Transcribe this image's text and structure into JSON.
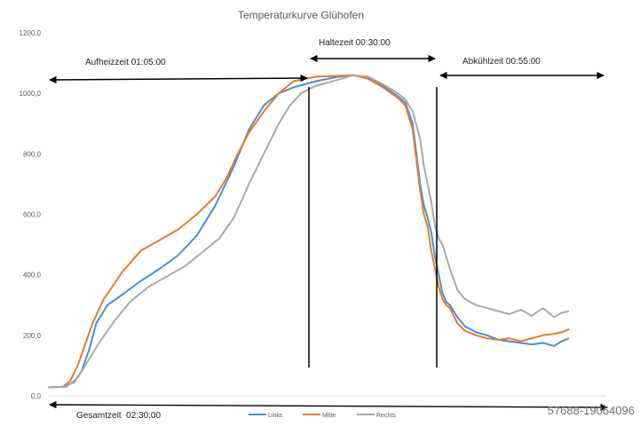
{
  "chart_data": {
    "type": "line",
    "title": "Temperaturkurve Glühofen",
    "xlabel": "",
    "ylabel": "",
    "ylim": [
      0,
      1200
    ],
    "y_ticks": [
      "0,0",
      "200,0",
      "400,0",
      "600,0",
      "800,0",
      "1000,0",
      "1200,0"
    ],
    "grid": false,
    "legend_position": "bottom",
    "x_range_minutes": [
      0,
      150
    ],
    "series": [
      {
        "name": "Links",
        "color": "#4a8fd0",
        "points": [
          [
            0,
            28
          ],
          [
            4,
            30
          ],
          [
            7,
            45
          ],
          [
            9,
            80
          ],
          [
            11,
            150
          ],
          [
            13,
            240
          ],
          [
            16,
            300
          ],
          [
            20,
            335
          ],
          [
            25,
            380
          ],
          [
            30,
            420
          ],
          [
            35,
            465
          ],
          [
            40,
            530
          ],
          [
            45,
            630
          ],
          [
            50,
            760
          ],
          [
            54,
            880
          ],
          [
            58,
            960
          ],
          [
            62,
            1000
          ],
          [
            66,
            1020
          ],
          [
            72,
            1040
          ],
          [
            78,
            1055
          ],
          [
            82,
            1060
          ],
          [
            86,
            1050
          ],
          [
            90,
            1025
          ],
          [
            94,
            990
          ],
          [
            96,
            970
          ],
          [
            98,
            900
          ],
          [
            99,
            800
          ],
          [
            100,
            700
          ],
          [
            101,
            630
          ],
          [
            102,
            590
          ],
          [
            103,
            540
          ],
          [
            104,
            460
          ],
          [
            105,
            400
          ],
          [
            106,
            340
          ],
          [
            107,
            310
          ],
          [
            108,
            300
          ],
          [
            110,
            260
          ],
          [
            112,
            230
          ],
          [
            115,
            210
          ],
          [
            118,
            200
          ],
          [
            121,
            185
          ],
          [
            124,
            180
          ],
          [
            127,
            175
          ],
          [
            130,
            170
          ],
          [
            133,
            175
          ],
          [
            136,
            165
          ],
          [
            138,
            180
          ],
          [
            140,
            190
          ]
        ]
      },
      {
        "name": "Mitte",
        "color": "#e57b30",
        "points": [
          [
            0,
            28
          ],
          [
            4,
            30
          ],
          [
            6,
            50
          ],
          [
            8,
            100
          ],
          [
            10,
            170
          ],
          [
            12,
            240
          ],
          [
            15,
            320
          ],
          [
            20,
            410
          ],
          [
            25,
            480
          ],
          [
            30,
            515
          ],
          [
            35,
            550
          ],
          [
            40,
            600
          ],
          [
            45,
            660
          ],
          [
            48,
            720
          ],
          [
            51,
            800
          ],
          [
            54,
            870
          ],
          [
            58,
            940
          ],
          [
            62,
            1000
          ],
          [
            66,
            1040
          ],
          [
            72,
            1055
          ],
          [
            78,
            1058
          ],
          [
            82,
            1060
          ],
          [
            86,
            1048
          ],
          [
            90,
            1020
          ],
          [
            94,
            985
          ],
          [
            96,
            960
          ],
          [
            98,
            880
          ],
          [
            99,
            780
          ],
          [
            100,
            680
          ],
          [
            101,
            600
          ],
          [
            102,
            560
          ],
          [
            103,
            480
          ],
          [
            104,
            420
          ],
          [
            105,
            360
          ],
          [
            106,
            320
          ],
          [
            107,
            300
          ],
          [
            108,
            290
          ],
          [
            110,
            240
          ],
          [
            112,
            215
          ],
          [
            115,
            200
          ],
          [
            118,
            190
          ],
          [
            121,
            185
          ],
          [
            124,
            190
          ],
          [
            127,
            180
          ],
          [
            130,
            190
          ],
          [
            133,
            200
          ],
          [
            136,
            205
          ],
          [
            138,
            210
          ],
          [
            140,
            220
          ]
        ]
      },
      {
        "name": "Rechts",
        "color": "#a9a9a9",
        "points": [
          [
            0,
            28
          ],
          [
            5,
            30
          ],
          [
            8,
            60
          ],
          [
            11,
            120
          ],
          [
            14,
            180
          ],
          [
            18,
            250
          ],
          [
            22,
            310
          ],
          [
            27,
            360
          ],
          [
            32,
            395
          ],
          [
            37,
            430
          ],
          [
            42,
            480
          ],
          [
            46,
            520
          ],
          [
            50,
            590
          ],
          [
            54,
            700
          ],
          [
            58,
            800
          ],
          [
            62,
            900
          ],
          [
            65,
            960
          ],
          [
            68,
            1000
          ],
          [
            72,
            1025
          ],
          [
            78,
            1045
          ],
          [
            82,
            1060
          ],
          [
            86,
            1055
          ],
          [
            90,
            1030
          ],
          [
            94,
            1000
          ],
          [
            96,
            980
          ],
          [
            98,
            940
          ],
          [
            100,
            850
          ],
          [
            101,
            760
          ],
          [
            102,
            700
          ],
          [
            103,
            640
          ],
          [
            104,
            560
          ],
          [
            105,
            520
          ],
          [
            106,
            500
          ],
          [
            107,
            460
          ],
          [
            108,
            420
          ],
          [
            110,
            350
          ],
          [
            112,
            320
          ],
          [
            115,
            300
          ],
          [
            118,
            290
          ],
          [
            121,
            280
          ],
          [
            124,
            270
          ],
          [
            127,
            285
          ],
          [
            130,
            265
          ],
          [
            133,
            290
          ],
          [
            136,
            260
          ],
          [
            138,
            275
          ],
          [
            140,
            280
          ]
        ]
      }
    ],
    "annotations": {
      "heat": "Aufheizzeit 01:05:00",
      "hold": "Haltezeit 00:30:00",
      "cool": "Abkühlzeit 00:55:00",
      "total": "Gesamtzeit  02:30:00"
    }
  },
  "watermark": "57688-19064096"
}
